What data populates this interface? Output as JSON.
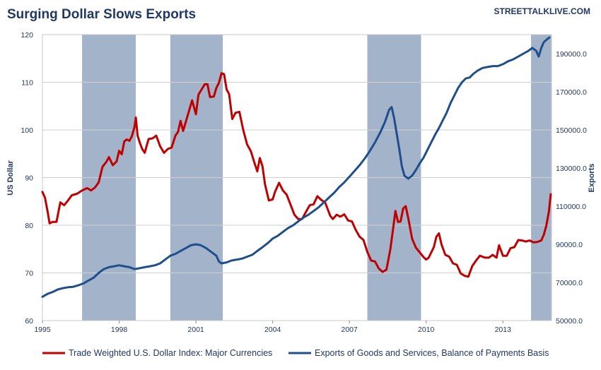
{
  "chart_data": {
    "type": "line",
    "title": "Surging Dollar Slows Exports",
    "watermark": "STREETTALKLIVE.COM",
    "xlabel": "",
    "y_left_label": "US Dollar",
    "y_right_label": "Exports",
    "x_range": [
      1995.0,
      2014.9
    ],
    "y_left_range": [
      60,
      120
    ],
    "y_right_range": [
      50000,
      200000
    ],
    "x_ticks": [
      {
        "value": 1995,
        "label": "1995"
      },
      {
        "value": 1998,
        "label": "1998"
      },
      {
        "value": 2001,
        "label": "2001"
      },
      {
        "value": 2004,
        "label": "2004"
      },
      {
        "value": 2007,
        "label": "2007"
      },
      {
        "value": 2010,
        "label": "2010"
      },
      {
        "value": 2013,
        "label": "2013"
      }
    ],
    "y_left_ticks": [
      {
        "value": 60,
        "label": "60"
      },
      {
        "value": 70,
        "label": "70"
      },
      {
        "value": 80,
        "label": "80"
      },
      {
        "value": 90,
        "label": "90"
      },
      {
        "value": 100,
        "label": "100"
      },
      {
        "value": 110,
        "label": "110"
      },
      {
        "value": 120,
        "label": "120"
      }
    ],
    "y_right_ticks": [
      {
        "value": 50000,
        "label": "50000.0"
      },
      {
        "value": 70000,
        "label": "70000.0"
      },
      {
        "value": 90000,
        "label": "90000.0"
      },
      {
        "value": 110000,
        "label": "110000.0"
      },
      {
        "value": 130000,
        "label": "130000.0"
      },
      {
        "value": 150000,
        "label": "150000.0"
      },
      {
        "value": 170000,
        "label": "170000.0"
      },
      {
        "value": 190000,
        "label": "190000.0"
      }
    ],
    "grid": "horizontal",
    "legend_position": "bottom",
    "shaded_periods": [
      {
        "start": 1996.55,
        "end": 1998.65
      },
      {
        "start": 2000.0,
        "end": 2002.05
      },
      {
        "start": 2007.7,
        "end": 2009.8
      },
      {
        "start": 2014.1,
        "end": 2014.9
      }
    ],
    "series": [
      {
        "name": "Trade Weighted U.S. Dollar Index: Major Currencies",
        "axis": "left",
        "color": "#c00000",
        "points": [
          [
            1995.0,
            87.0
          ],
          [
            1995.1,
            85.8
          ],
          [
            1995.2,
            83.0
          ],
          [
            1995.28,
            80.4
          ],
          [
            1995.4,
            80.7
          ],
          [
            1995.55,
            80.7
          ],
          [
            1995.7,
            84.8
          ],
          [
            1995.85,
            84.2
          ],
          [
            1996.0,
            85.2
          ],
          [
            1996.15,
            86.3
          ],
          [
            1996.35,
            86.6
          ],
          [
            1996.55,
            87.3
          ],
          [
            1996.75,
            87.8
          ],
          [
            1996.9,
            87.3
          ],
          [
            1997.05,
            87.9
          ],
          [
            1997.2,
            89.0
          ],
          [
            1997.35,
            92.3
          ],
          [
            1997.5,
            93.3
          ],
          [
            1997.6,
            94.3
          ],
          [
            1997.75,
            92.6
          ],
          [
            1997.9,
            93.4
          ],
          [
            1998.0,
            95.6
          ],
          [
            1998.1,
            94.9
          ],
          [
            1998.2,
            97.6
          ],
          [
            1998.3,
            98.0
          ],
          [
            1998.4,
            97.7
          ],
          [
            1998.5,
            98.7
          ],
          [
            1998.6,
            100.7
          ],
          [
            1998.65,
            102.6
          ],
          [
            1998.72,
            98.8
          ],
          [
            1998.8,
            97.4
          ],
          [
            1998.9,
            96.0
          ],
          [
            1999.0,
            95.2
          ],
          [
            1999.15,
            98.1
          ],
          [
            1999.3,
            98.2
          ],
          [
            1999.45,
            98.8
          ],
          [
            1999.6,
            96.6
          ],
          [
            1999.75,
            95.2
          ],
          [
            1999.9,
            96.0
          ],
          [
            2000.05,
            96.3
          ],
          [
            2000.2,
            98.8
          ],
          [
            2000.3,
            99.6
          ],
          [
            2000.4,
            101.9
          ],
          [
            2000.5,
            99.8
          ],
          [
            2000.65,
            102.5
          ],
          [
            2000.85,
            106.2
          ],
          [
            2001.0,
            103.3
          ],
          [
            2001.1,
            107.4
          ],
          [
            2001.2,
            108.3
          ],
          [
            2001.35,
            109.6
          ],
          [
            2001.45,
            109.6
          ],
          [
            2001.55,
            106.9
          ],
          [
            2001.7,
            107.0
          ],
          [
            2001.8,
            108.8
          ],
          [
            2001.9,
            109.9
          ],
          [
            2002.0,
            111.9
          ],
          [
            2002.1,
            111.7
          ],
          [
            2002.2,
            108.5
          ],
          [
            2002.3,
            107.5
          ],
          [
            2002.42,
            102.3
          ],
          [
            2002.55,
            103.6
          ],
          [
            2002.7,
            103.8
          ],
          [
            2002.85,
            100.0
          ],
          [
            2003.0,
            97.0
          ],
          [
            2003.15,
            95.5
          ],
          [
            2003.3,
            92.9
          ],
          [
            2003.4,
            91.3
          ],
          [
            2003.5,
            94.1
          ],
          [
            2003.6,
            92.4
          ],
          [
            2003.7,
            88.6
          ],
          [
            2003.85,
            85.2
          ],
          [
            2004.0,
            85.4
          ],
          [
            2004.1,
            87.1
          ],
          [
            2004.25,
            88.9
          ],
          [
            2004.4,
            87.3
          ],
          [
            2004.55,
            86.4
          ],
          [
            2004.7,
            84.3
          ],
          [
            2004.85,
            82.2
          ],
          [
            2005.0,
            81.3
          ],
          [
            2005.15,
            81.3
          ],
          [
            2005.3,
            82.8
          ],
          [
            2005.45,
            84.2
          ],
          [
            2005.6,
            84.4
          ],
          [
            2005.75,
            86.1
          ],
          [
            2005.9,
            85.3
          ],
          [
            2006.05,
            84.8
          ],
          [
            2006.15,
            83.4
          ],
          [
            2006.25,
            82.0
          ],
          [
            2006.35,
            81.3
          ],
          [
            2006.5,
            82.2
          ],
          [
            2006.65,
            81.8
          ],
          [
            2006.8,
            82.3
          ],
          [
            2006.95,
            81.0
          ],
          [
            2007.1,
            80.8
          ],
          [
            2007.25,
            79.0
          ],
          [
            2007.4,
            77.6
          ],
          [
            2007.55,
            76.9
          ],
          [
            2007.7,
            74.4
          ],
          [
            2007.85,
            72.6
          ],
          [
            2008.0,
            72.4
          ],
          [
            2008.15,
            70.9
          ],
          [
            2008.3,
            70.2
          ],
          [
            2008.45,
            70.7
          ],
          [
            2008.6,
            75.0
          ],
          [
            2008.7,
            79.0
          ],
          [
            2008.8,
            83.0
          ],
          [
            2008.9,
            80.7
          ],
          [
            2009.0,
            80.8
          ],
          [
            2009.1,
            83.5
          ],
          [
            2009.2,
            84.0
          ],
          [
            2009.3,
            81.5
          ],
          [
            2009.45,
            77.2
          ],
          [
            2009.6,
            75.3
          ],
          [
            2009.75,
            74.3
          ],
          [
            2009.9,
            73.3
          ],
          [
            2010.0,
            72.8
          ],
          [
            2010.1,
            73.2
          ],
          [
            2010.2,
            74.3
          ],
          [
            2010.3,
            75.4
          ],
          [
            2010.4,
            77.6
          ],
          [
            2010.5,
            78.3
          ],
          [
            2010.6,
            76.0
          ],
          [
            2010.75,
            73.8
          ],
          [
            2010.9,
            73.4
          ],
          [
            2011.05,
            72.0
          ],
          [
            2011.2,
            71.7
          ],
          [
            2011.35,
            69.9
          ],
          [
            2011.5,
            69.4
          ],
          [
            2011.65,
            69.2
          ],
          [
            2011.8,
            71.4
          ],
          [
            2011.95,
            72.6
          ],
          [
            2012.1,
            73.6
          ],
          [
            2012.3,
            73.2
          ],
          [
            2012.45,
            73.2
          ],
          [
            2012.6,
            73.8
          ],
          [
            2012.75,
            73.2
          ],
          [
            2012.85,
            75.8
          ],
          [
            2013.0,
            73.6
          ],
          [
            2013.15,
            73.6
          ],
          [
            2013.3,
            75.2
          ],
          [
            2013.45,
            75.4
          ],
          [
            2013.6,
            76.9
          ],
          [
            2013.75,
            76.8
          ],
          [
            2013.9,
            76.6
          ],
          [
            2014.05,
            76.8
          ],
          [
            2014.2,
            76.4
          ],
          [
            2014.35,
            76.5
          ],
          [
            2014.5,
            76.8
          ],
          [
            2014.6,
            78.0
          ],
          [
            2014.7,
            80.0
          ],
          [
            2014.8,
            83.0
          ],
          [
            2014.87,
            86.5
          ]
        ]
      },
      {
        "name": "Exports of Goods and Services, Balance of Payments Basis",
        "axis": "right",
        "color": "#1f4e8c",
        "points": [
          [
            1995.0,
            62500
          ],
          [
            1995.2,
            64000
          ],
          [
            1995.4,
            65000
          ],
          [
            1995.6,
            66300
          ],
          [
            1995.8,
            67000
          ],
          [
            1996.0,
            67500
          ],
          [
            1996.2,
            67700
          ],
          [
            1996.4,
            68500
          ],
          [
            1996.6,
            69500
          ],
          [
            1996.8,
            71000
          ],
          [
            1997.0,
            72500
          ],
          [
            1997.2,
            75000
          ],
          [
            1997.4,
            77000
          ],
          [
            1997.6,
            78000
          ],
          [
            1997.8,
            78500
          ],
          [
            1998.0,
            79000
          ],
          [
            1998.2,
            78500
          ],
          [
            1998.4,
            78000
          ],
          [
            1998.6,
            77000
          ],
          [
            1998.8,
            77500
          ],
          [
            1999.0,
            78000
          ],
          [
            1999.2,
            78500
          ],
          [
            1999.4,
            79000
          ],
          [
            1999.6,
            80000
          ],
          [
            1999.8,
            82000
          ],
          [
            2000.0,
            84000
          ],
          [
            2000.2,
            85000
          ],
          [
            2000.4,
            86500
          ],
          [
            2000.6,
            88000
          ],
          [
            2000.8,
            89500
          ],
          [
            2001.0,
            90000
          ],
          [
            2001.2,
            89500
          ],
          [
            2001.4,
            88000
          ],
          [
            2001.6,
            86000
          ],
          [
            2001.8,
            84000
          ],
          [
            2001.9,
            81000
          ],
          [
            2002.0,
            80000
          ],
          [
            2002.2,
            80500
          ],
          [
            2002.4,
            81500
          ],
          [
            2002.6,
            82000
          ],
          [
            2002.8,
            82500
          ],
          [
            2003.0,
            83500
          ],
          [
            2003.2,
            84500
          ],
          [
            2003.4,
            86500
          ],
          [
            2003.6,
            88500
          ],
          [
            2003.8,
            90500
          ],
          [
            2004.0,
            93000
          ],
          [
            2004.2,
            94500
          ],
          [
            2004.4,
            96500
          ],
          [
            2004.6,
            98500
          ],
          [
            2004.8,
            100000
          ],
          [
            2005.0,
            102000
          ],
          [
            2005.2,
            104000
          ],
          [
            2005.4,
            105500
          ],
          [
            2005.6,
            107500
          ],
          [
            2005.8,
            109500
          ],
          [
            2006.0,
            112000
          ],
          [
            2006.2,
            114500
          ],
          [
            2006.4,
            117000
          ],
          [
            2006.6,
            120000
          ],
          [
            2006.8,
            122500
          ],
          [
            2007.0,
            125500
          ],
          [
            2007.2,
            128500
          ],
          [
            2007.4,
            131500
          ],
          [
            2007.6,
            135000
          ],
          [
            2007.8,
            139000
          ],
          [
            2008.0,
            143500
          ],
          [
            2008.2,
            148500
          ],
          [
            2008.4,
            154500
          ],
          [
            2008.55,
            160500
          ],
          [
            2008.65,
            162000
          ],
          [
            2008.75,
            156000
          ],
          [
            2008.85,
            148000
          ],
          [
            2008.95,
            140000
          ],
          [
            2009.05,
            131000
          ],
          [
            2009.15,
            126000
          ],
          [
            2009.3,
            124500
          ],
          [
            2009.45,
            126000
          ],
          [
            2009.6,
            129000
          ],
          [
            2009.75,
            132500
          ],
          [
            2009.9,
            135500
          ],
          [
            2010.05,
            139500
          ],
          [
            2010.2,
            143500
          ],
          [
            2010.35,
            147500
          ],
          [
            2010.5,
            151000
          ],
          [
            2010.65,
            155000
          ],
          [
            2010.8,
            159000
          ],
          [
            2010.95,
            164000
          ],
          [
            2011.1,
            168000
          ],
          [
            2011.25,
            172000
          ],
          [
            2011.4,
            175000
          ],
          [
            2011.55,
            177000
          ],
          [
            2011.7,
            177500
          ],
          [
            2011.85,
            179500
          ],
          [
            2012.0,
            181000
          ],
          [
            2012.2,
            182500
          ],
          [
            2012.4,
            183000
          ],
          [
            2012.6,
            183500
          ],
          [
            2012.8,
            183500
          ],
          [
            2013.0,
            184500
          ],
          [
            2013.2,
            186000
          ],
          [
            2013.4,
            187000
          ],
          [
            2013.6,
            188500
          ],
          [
            2013.8,
            190000
          ],
          [
            2014.0,
            191500
          ],
          [
            2014.15,
            193000
          ],
          [
            2014.3,
            191500
          ],
          [
            2014.4,
            188500
          ],
          [
            2014.5,
            193000
          ],
          [
            2014.6,
            196000
          ],
          [
            2014.72,
            197500
          ],
          [
            2014.82,
            198500
          ]
        ]
      }
    ]
  }
}
